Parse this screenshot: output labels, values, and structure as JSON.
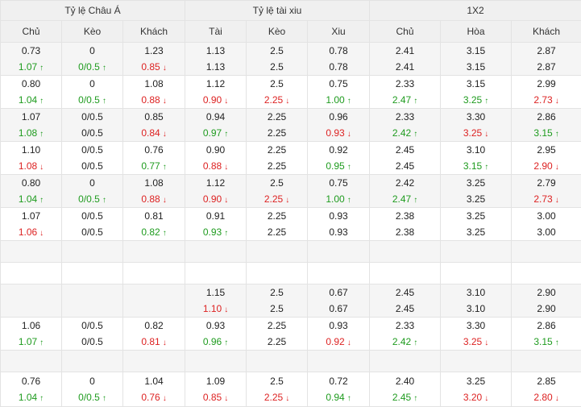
{
  "groups": {
    "asian": "Tỷ lệ Châu Á",
    "overunder": "Tỷ lệ tài xiu",
    "x12": "1X2"
  },
  "columns": [
    "Chủ",
    "Kèo",
    "Khách",
    "Tài",
    "Kèo",
    "Xiu",
    "Chủ",
    "Hòa",
    "Khách"
  ],
  "rows": [
    [
      [
        "0.73",
        [
          "1.07",
          "up"
        ]
      ],
      [
        "0",
        [
          "0/0.5",
          "up"
        ]
      ],
      [
        "1.23",
        [
          "0.85",
          "down"
        ]
      ],
      [
        "1.13",
        [
          "1.13",
          ""
        ]
      ],
      [
        "2.5",
        [
          "2.5",
          ""
        ]
      ],
      [
        "0.78",
        [
          "0.78",
          ""
        ]
      ],
      [
        "2.41",
        [
          "2.41",
          ""
        ]
      ],
      [
        "3.15",
        [
          "3.15",
          ""
        ]
      ],
      [
        "2.87",
        [
          "2.87",
          ""
        ]
      ]
    ],
    [
      [
        "0.80",
        [
          "1.04",
          "up"
        ]
      ],
      [
        "0",
        [
          "0/0.5",
          "up"
        ]
      ],
      [
        "1.08",
        [
          "0.88",
          "down"
        ]
      ],
      [
        "1.12",
        [
          "0.90",
          "down"
        ]
      ],
      [
        "2.5",
        [
          "2.25",
          "down"
        ]
      ],
      [
        "0.75",
        [
          "1.00",
          "up"
        ]
      ],
      [
        "2.33",
        [
          "2.47",
          "up"
        ]
      ],
      [
        "3.15",
        [
          "3.25",
          "up"
        ]
      ],
      [
        "2.99",
        [
          "2.73",
          "down"
        ]
      ]
    ],
    [
      [
        "1.07",
        [
          "1.08",
          "up"
        ]
      ],
      [
        "0/0.5",
        [
          "0/0.5",
          ""
        ]
      ],
      [
        "0.85",
        [
          "0.84",
          "down"
        ]
      ],
      [
        "0.94",
        [
          "0.97",
          "up"
        ]
      ],
      [
        "2.25",
        [
          "2.25",
          ""
        ]
      ],
      [
        "0.96",
        [
          "0.93",
          "down"
        ]
      ],
      [
        "2.33",
        [
          "2.42",
          "up"
        ]
      ],
      [
        "3.30",
        [
          "3.25",
          "down"
        ]
      ],
      [
        "2.86",
        [
          "3.15",
          "up"
        ]
      ]
    ],
    [
      [
        "1.10",
        [
          "1.08",
          "down"
        ]
      ],
      [
        "0/0.5",
        [
          "0/0.5",
          ""
        ]
      ],
      [
        "0.76",
        [
          "0.77",
          "up"
        ]
      ],
      [
        "0.90",
        [
          "0.88",
          "down"
        ]
      ],
      [
        "2.25",
        [
          "2.25",
          ""
        ]
      ],
      [
        "0.92",
        [
          "0.95",
          "up"
        ]
      ],
      [
        "2.45",
        [
          "2.45",
          ""
        ]
      ],
      [
        "3.10",
        [
          "3.15",
          "up"
        ]
      ],
      [
        "2.95",
        [
          "2.90",
          "down"
        ]
      ]
    ],
    [
      [
        "0.80",
        [
          "1.04",
          "up"
        ]
      ],
      [
        "0",
        [
          "0/0.5",
          "up"
        ]
      ],
      [
        "1.08",
        [
          "0.88",
          "down"
        ]
      ],
      [
        "1.12",
        [
          "0.90",
          "down"
        ]
      ],
      [
        "2.5",
        [
          "2.25",
          "down"
        ]
      ],
      [
        "0.75",
        [
          "1.00",
          "up"
        ]
      ],
      [
        "2.42",
        [
          "2.47",
          "up"
        ]
      ],
      [
        "3.25",
        [
          "3.25",
          ""
        ]
      ],
      [
        "2.79",
        [
          "2.73",
          "down"
        ]
      ]
    ],
    [
      [
        "1.07",
        [
          "1.06",
          "down"
        ]
      ],
      [
        "0/0.5",
        [
          "0/0.5",
          ""
        ]
      ],
      [
        "0.81",
        [
          "0.82",
          "up"
        ]
      ],
      [
        "0.91",
        [
          "0.93",
          "up"
        ]
      ],
      [
        "2.25",
        [
          "2.25",
          ""
        ]
      ],
      [
        "0.93",
        [
          "0.93",
          ""
        ]
      ],
      [
        "2.38",
        [
          "2.38",
          ""
        ]
      ],
      [
        "3.25",
        [
          "3.25",
          ""
        ]
      ],
      [
        "3.00",
        [
          "3.00",
          ""
        ]
      ]
    ],
    "empty",
    "empty",
    [
      null,
      null,
      null,
      [
        "1.15",
        [
          "1.10",
          "down"
        ]
      ],
      [
        "2.5",
        [
          "2.5",
          ""
        ]
      ],
      [
        "0.67",
        [
          "0.67",
          ""
        ]
      ],
      [
        "2.45",
        [
          "2.45",
          ""
        ]
      ],
      [
        "3.10",
        [
          "3.10",
          ""
        ]
      ],
      [
        "2.90",
        [
          "2.90",
          ""
        ]
      ]
    ],
    [
      [
        "1.06",
        [
          "1.07",
          "up"
        ]
      ],
      [
        "0/0.5",
        [
          "0/0.5",
          ""
        ]
      ],
      [
        "0.82",
        [
          "0.81",
          "down"
        ]
      ],
      [
        "0.93",
        [
          "0.96",
          "up"
        ]
      ],
      [
        "2.25",
        [
          "2.25",
          ""
        ]
      ],
      [
        "0.93",
        [
          "0.92",
          "down"
        ]
      ],
      [
        "2.33",
        [
          "2.42",
          "up"
        ]
      ],
      [
        "3.30",
        [
          "3.25",
          "down"
        ]
      ],
      [
        "2.86",
        [
          "3.15",
          "up"
        ]
      ]
    ],
    "empty",
    [
      [
        "0.76",
        [
          "1.04",
          "up"
        ]
      ],
      [
        "0",
        [
          "0/0.5",
          "up"
        ]
      ],
      [
        "1.04",
        [
          "0.76",
          "down"
        ]
      ],
      [
        "1.09",
        [
          "0.85",
          "down"
        ]
      ],
      [
        "2.5",
        [
          "2.25",
          "down"
        ]
      ],
      [
        "0.72",
        [
          "0.94",
          "up"
        ]
      ],
      [
        "2.40",
        [
          "2.45",
          "up"
        ]
      ],
      [
        "3.25",
        [
          "3.20",
          "down"
        ]
      ],
      [
        "2.85",
        [
          "2.80",
          "down"
        ]
      ]
    ]
  ],
  "arrows": {
    "up": "↑",
    "down": "↓"
  },
  "colors": {
    "up": "#1e9b1e",
    "down": "#dd2222",
    "header_bg": "#f0f0f0",
    "stripe_bg": "#f5f5f5",
    "border": "#e3e3e3"
  }
}
